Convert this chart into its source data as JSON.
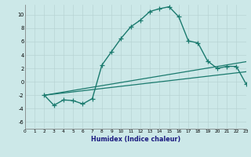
{
  "title": "",
  "xlabel": "Humidex (Indice chaleur)",
  "bg_color": "#cce8e8",
  "line_color": "#1a7a6e",
  "grid_color": "#b8d4d4",
  "xlim": [
    0,
    23
  ],
  "ylim": [
    -7,
    11.5
  ],
  "xticks": [
    0,
    1,
    2,
    3,
    4,
    5,
    6,
    7,
    8,
    9,
    10,
    11,
    12,
    13,
    14,
    15,
    16,
    17,
    18,
    19,
    20,
    21,
    22,
    23
  ],
  "yticks": [
    -6,
    -4,
    -2,
    0,
    2,
    4,
    6,
    8,
    10
  ],
  "series": [
    {
      "x": [
        2,
        3,
        4,
        5,
        6,
        7,
        8,
        9,
        10,
        11,
        12,
        13,
        14,
        15,
        16,
        17,
        18,
        19,
        20,
        21,
        22,
        23
      ],
      "y": [
        -2,
        -3.5,
        -2.7,
        -2.8,
        -3.3,
        -2.5,
        2.5,
        4.5,
        6.5,
        8.2,
        9.2,
        10.5,
        10.9,
        11.2,
        9.7,
        6.1,
        5.8,
        3.1,
        2.0,
        2.3,
        2.3,
        -0.3
      ],
      "marker": "+",
      "markersize": 4,
      "linewidth": 1.0
    },
    {
      "x": [
        2,
        23
      ],
      "y": [
        -2.0,
        3.0
      ],
      "marker": null,
      "markersize": 0,
      "linewidth": 0.9
    },
    {
      "x": [
        2,
        23
      ],
      "y": [
        -2.0,
        1.5
      ],
      "marker": null,
      "markersize": 0,
      "linewidth": 0.9
    }
  ]
}
